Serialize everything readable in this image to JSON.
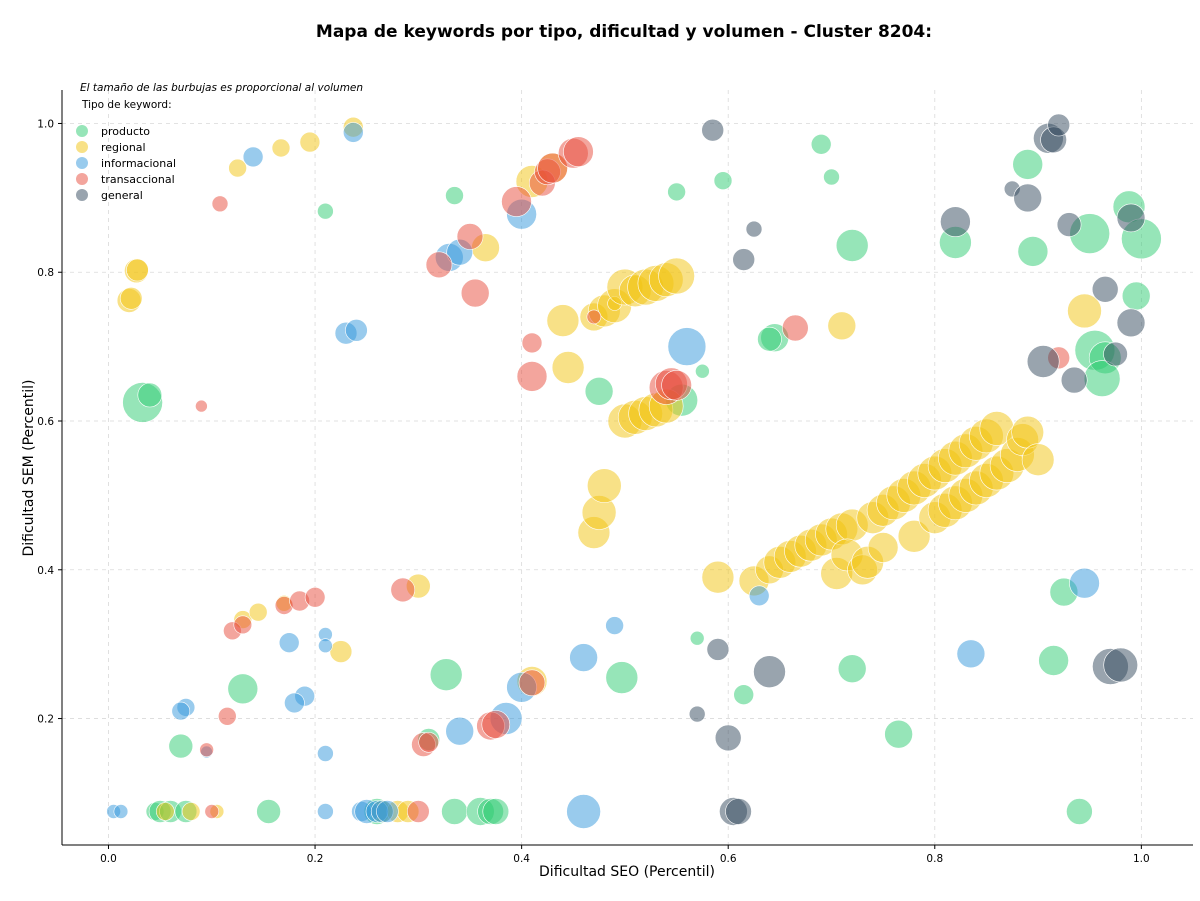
{
  "chart_data": {
    "type": "scatter",
    "title": "Mapa de keywords por tipo, dificultad y volumen - Cluster 8204:",
    "xlabel": "Dificultad SEO (Percentil)",
    "ylabel": "Dificultad SEM (Percentil)",
    "xlim": [
      -0.045,
      1.05
    ],
    "ylim": [
      0.03,
      1.045
    ],
    "xticks": [
      "0.0",
      "0.2",
      "0.4",
      "0.6",
      "0.8",
      "1.0"
    ],
    "yticks": [
      "0.2",
      "0.4",
      "0.6",
      "0.8",
      "1.0"
    ],
    "xtick_values": [
      0,
      0.2,
      0.4,
      0.6,
      0.8,
      1.0
    ],
    "ytick_values": [
      0.2,
      0.4,
      0.6,
      0.8,
      1.0
    ],
    "grid": true,
    "note": "El tamaño de las burbujas es proporcional al volumen",
    "legend_title": "Tipo de keyword:",
    "legend_position": "top-left",
    "series": [
      {
        "name": "producto",
        "color": "#2ecc71",
        "points": [
          [
            0.033,
            0.625,
            20
          ],
          [
            0.04,
            0.635,
            12
          ],
          [
            0.21,
            0.882,
            8
          ],
          [
            0.335,
            0.903,
            9
          ],
          [
            0.55,
            0.908,
            9
          ],
          [
            0.595,
            0.923,
            9
          ],
          [
            0.69,
            0.972,
            10
          ],
          [
            0.7,
            0.928,
            8
          ],
          [
            0.72,
            0.836,
            16
          ],
          [
            0.82,
            0.84,
            16
          ],
          [
            0.89,
            0.945,
            15
          ],
          [
            0.895,
            0.828,
            15
          ],
          [
            0.988,
            0.888,
            16
          ],
          [
            0.95,
            0.852,
            20
          ],
          [
            1.0,
            0.845,
            20
          ],
          [
            0.995,
            0.768,
            14
          ],
          [
            0.955,
            0.695,
            20
          ],
          [
            0.965,
            0.685,
            16
          ],
          [
            0.962,
            0.657,
            18
          ],
          [
            0.645,
            0.712,
            14
          ],
          [
            0.64,
            0.71,
            12
          ],
          [
            0.475,
            0.64,
            14
          ],
          [
            0.555,
            0.628,
            16
          ],
          [
            0.575,
            0.667,
            7
          ],
          [
            0.13,
            0.24,
            15
          ],
          [
            0.07,
            0.163,
            12
          ],
          [
            0.31,
            0.172,
            11
          ],
          [
            0.327,
            0.259,
            16
          ],
          [
            0.497,
            0.255,
            16
          ],
          [
            0.57,
            0.308,
            7
          ],
          [
            0.615,
            0.232,
            10
          ],
          [
            0.72,
            0.267,
            14
          ],
          [
            0.765,
            0.179,
            14
          ],
          [
            0.915,
            0.278,
            15
          ],
          [
            0.925,
            0.37,
            14
          ],
          [
            0.045,
            0.075,
            9
          ],
          [
            0.05,
            0.075,
            11
          ],
          [
            0.06,
            0.075,
            11
          ],
          [
            0.075,
            0.075,
            11
          ],
          [
            0.155,
            0.075,
            12
          ],
          [
            0.26,
            0.075,
            13
          ],
          [
            0.335,
            0.075,
            13
          ],
          [
            0.36,
            0.075,
            14
          ],
          [
            0.37,
            0.075,
            13
          ],
          [
            0.375,
            0.075,
            13
          ],
          [
            0.94,
            0.075,
            13
          ]
        ]
      },
      {
        "name": "regional",
        "color": "#f1c40f",
        "points": [
          [
            0.02,
            0.762,
            12
          ],
          [
            0.022,
            0.765,
            11
          ],
          [
            0.027,
            0.802,
            12
          ],
          [
            0.028,
            0.803,
            11
          ],
          [
            0.125,
            0.94,
            9
          ],
          [
            0.167,
            0.967,
            9
          ],
          [
            0.195,
            0.975,
            10
          ],
          [
            0.237,
            0.995,
            10
          ],
          [
            0.365,
            0.833,
            14
          ],
          [
            0.41,
            0.922,
            16
          ],
          [
            0.43,
            0.94,
            15
          ],
          [
            0.44,
            0.735,
            16
          ],
          [
            0.47,
            0.74,
            14
          ],
          [
            0.48,
            0.748,
            16
          ],
          [
            0.49,
            0.755,
            17
          ],
          [
            0.49,
            0.758,
            7
          ],
          [
            0.5,
            0.78,
            18
          ],
          [
            0.51,
            0.775,
            16
          ],
          [
            0.52,
            0.78,
            18
          ],
          [
            0.53,
            0.785,
            18
          ],
          [
            0.54,
            0.79,
            17
          ],
          [
            0.55,
            0.795,
            18
          ],
          [
            0.445,
            0.672,
            16
          ],
          [
            0.5,
            0.6,
            17
          ],
          [
            0.51,
            0.605,
            17
          ],
          [
            0.52,
            0.61,
            17
          ],
          [
            0.53,
            0.615,
            17
          ],
          [
            0.54,
            0.62,
            17
          ],
          [
            0.47,
            0.45,
            16
          ],
          [
            0.475,
            0.477,
            17
          ],
          [
            0.48,
            0.513,
            17
          ],
          [
            0.59,
            0.39,
            16
          ],
          [
            0.625,
            0.385,
            15
          ],
          [
            0.64,
            0.4,
            14
          ],
          [
            0.65,
            0.41,
            16
          ],
          [
            0.66,
            0.418,
            16
          ],
          [
            0.67,
            0.425,
            16
          ],
          [
            0.68,
            0.433,
            16
          ],
          [
            0.69,
            0.44,
            16
          ],
          [
            0.7,
            0.448,
            16
          ],
          [
            0.71,
            0.455,
            16
          ],
          [
            0.72,
            0.46,
            16
          ],
          [
            0.705,
            0.395,
            16
          ],
          [
            0.715,
            0.42,
            16
          ],
          [
            0.73,
            0.4,
            15
          ],
          [
            0.74,
            0.47,
            16
          ],
          [
            0.75,
            0.48,
            16
          ],
          [
            0.76,
            0.49,
            17
          ],
          [
            0.77,
            0.5,
            17
          ],
          [
            0.78,
            0.51,
            17
          ],
          [
            0.79,
            0.52,
            17
          ],
          [
            0.8,
            0.53,
            17
          ],
          [
            0.81,
            0.54,
            17
          ],
          [
            0.82,
            0.55,
            17
          ],
          [
            0.83,
            0.56,
            17
          ],
          [
            0.84,
            0.57,
            17
          ],
          [
            0.85,
            0.58,
            17
          ],
          [
            0.86,
            0.59,
            17
          ],
          [
            0.735,
            0.41,
            16
          ],
          [
            0.75,
            0.43,
            15
          ],
          [
            0.78,
            0.445,
            16
          ],
          [
            0.8,
            0.47,
            16
          ],
          [
            0.81,
            0.48,
            17
          ],
          [
            0.82,
            0.49,
            17
          ],
          [
            0.83,
            0.5,
            17
          ],
          [
            0.84,
            0.51,
            17
          ],
          [
            0.85,
            0.52,
            17
          ],
          [
            0.86,
            0.53,
            17
          ],
          [
            0.87,
            0.54,
            17
          ],
          [
            0.88,
            0.555,
            17
          ],
          [
            0.885,
            0.575,
            16
          ],
          [
            0.89,
            0.585,
            16
          ],
          [
            0.9,
            0.548,
            16
          ],
          [
            0.71,
            0.728,
            14
          ],
          [
            0.945,
            0.748,
            17
          ],
          [
            0.3,
            0.378,
            12
          ],
          [
            0.225,
            0.29,
            11
          ],
          [
            0.13,
            0.333,
            9
          ],
          [
            0.145,
            0.343,
            9
          ],
          [
            0.17,
            0.355,
            8
          ],
          [
            0.41,
            0.25,
            15
          ],
          [
            0.055,
            0.075,
            9
          ],
          [
            0.08,
            0.075,
            9
          ],
          [
            0.105,
            0.075,
            7
          ],
          [
            0.265,
            0.075,
            11
          ],
          [
            0.28,
            0.075,
            11
          ],
          [
            0.29,
            0.075,
            11
          ]
        ]
      },
      {
        "name": "informacional",
        "color": "#3498db",
        "points": [
          [
            0.14,
            0.955,
            10
          ],
          [
            0.237,
            0.988,
            10
          ],
          [
            0.23,
            0.718,
            11
          ],
          [
            0.24,
            0.722,
            11
          ],
          [
            0.33,
            0.82,
            14
          ],
          [
            0.34,
            0.827,
            13
          ],
          [
            0.4,
            0.878,
            15
          ],
          [
            0.56,
            0.7,
            19
          ],
          [
            0.63,
            0.365,
            10
          ],
          [
            0.835,
            0.287,
            14
          ],
          [
            0.945,
            0.382,
            15
          ],
          [
            0.49,
            0.325,
            9
          ],
          [
            0.46,
            0.282,
            14
          ],
          [
            0.4,
            0.242,
            15
          ],
          [
            0.385,
            0.2,
            16
          ],
          [
            0.34,
            0.183,
            14
          ],
          [
            0.175,
            0.302,
            10
          ],
          [
            0.21,
            0.313,
            7
          ],
          [
            0.21,
            0.298,
            7
          ],
          [
            0.075,
            0.215,
            9
          ],
          [
            0.07,
            0.21,
            9
          ],
          [
            0.19,
            0.23,
            10
          ],
          [
            0.18,
            0.221,
            10
          ],
          [
            0.095,
            0.155,
            6
          ],
          [
            0.21,
            0.153,
            8
          ],
          [
            0.005,
            0.075,
            7
          ],
          [
            0.012,
            0.075,
            7
          ],
          [
            0.21,
            0.075,
            8
          ],
          [
            0.245,
            0.075,
            10
          ],
          [
            0.25,
            0.075,
            12
          ],
          [
            0.26,
            0.075,
            11
          ],
          [
            0.265,
            0.075,
            11
          ],
          [
            0.27,
            0.075,
            11
          ],
          [
            0.46,
            0.075,
            17
          ]
        ]
      },
      {
        "name": "transaccional",
        "color": "#e74c3c",
        "points": [
          [
            0.108,
            0.892,
            8
          ],
          [
            0.09,
            0.62,
            6
          ],
          [
            0.32,
            0.81,
            13
          ],
          [
            0.35,
            0.848,
            13
          ],
          [
            0.355,
            0.772,
            14
          ],
          [
            0.395,
            0.895,
            15
          ],
          [
            0.41,
            0.705,
            10
          ],
          [
            0.41,
            0.66,
            15
          ],
          [
            0.42,
            0.92,
            13
          ],
          [
            0.425,
            0.935,
            13
          ],
          [
            0.43,
            0.94,
            15
          ],
          [
            0.45,
            0.96,
            15
          ],
          [
            0.455,
            0.962,
            15
          ],
          [
            0.47,
            0.74,
            7
          ],
          [
            0.54,
            0.645,
            17
          ],
          [
            0.545,
            0.65,
            16
          ],
          [
            0.55,
            0.648,
            15
          ],
          [
            0.665,
            0.725,
            13
          ],
          [
            0.92,
            0.685,
            11
          ],
          [
            0.12,
            0.318,
            9
          ],
          [
            0.13,
            0.326,
            9
          ],
          [
            0.17,
            0.352,
            9
          ],
          [
            0.185,
            0.358,
            10
          ],
          [
            0.2,
            0.363,
            10
          ],
          [
            0.285,
            0.373,
            12
          ],
          [
            0.305,
            0.165,
            12
          ],
          [
            0.31,
            0.168,
            10
          ],
          [
            0.37,
            0.19,
            14
          ],
          [
            0.375,
            0.192,
            14
          ],
          [
            0.41,
            0.248,
            13
          ],
          [
            0.115,
            0.203,
            9
          ],
          [
            0.095,
            0.158,
            7
          ],
          [
            0.1,
            0.075,
            7
          ],
          [
            0.3,
            0.075,
            11
          ]
        ]
      },
      {
        "name": "general",
        "color": "#34495e",
        "points": [
          [
            0.585,
            0.991,
            11
          ],
          [
            0.625,
            0.858,
            8
          ],
          [
            0.615,
            0.817,
            11
          ],
          [
            0.82,
            0.868,
            15
          ],
          [
            0.875,
            0.912,
            8
          ],
          [
            0.89,
            0.9,
            14
          ],
          [
            0.91,
            0.98,
            15
          ],
          [
            0.915,
            0.978,
            13
          ],
          [
            0.92,
            0.998,
            11
          ],
          [
            0.93,
            0.864,
            12
          ],
          [
            0.965,
            0.777,
            13
          ],
          [
            0.99,
            0.873,
            14
          ],
          [
            0.99,
            0.732,
            14
          ],
          [
            0.905,
            0.68,
            16
          ],
          [
            0.935,
            0.655,
            13
          ],
          [
            0.975,
            0.69,
            12
          ],
          [
            0.59,
            0.293,
            11
          ],
          [
            0.64,
            0.263,
            16
          ],
          [
            0.57,
            0.206,
            8
          ],
          [
            0.6,
            0.174,
            13
          ],
          [
            0.605,
            0.075,
            14
          ],
          [
            0.61,
            0.075,
            13
          ],
          [
            0.97,
            0.27,
            18
          ],
          [
            0.98,
            0.272,
            17
          ]
        ]
      }
    ]
  }
}
